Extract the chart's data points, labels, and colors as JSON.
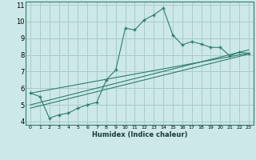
{
  "xlabel": "Humidex (Indice chaleur)",
  "background_color": "#cce8e8",
  "grid_color": "#aacccc",
  "line_color": "#2e7d6e",
  "xlim": [
    -0.5,
    23.5
  ],
  "ylim": [
    3.8,
    11.2
  ],
  "yticks": [
    4,
    5,
    6,
    7,
    8,
    9,
    10,
    11
  ],
  "xticks": [
    0,
    1,
    2,
    3,
    4,
    5,
    6,
    7,
    8,
    9,
    10,
    11,
    12,
    13,
    14,
    15,
    16,
    17,
    18,
    19,
    20,
    21,
    22,
    23
  ],
  "series": [
    {
      "x": [
        0,
        1,
        2,
        3,
        4,
        5,
        6,
        7,
        8,
        9,
        10,
        11,
        12,
        13,
        14,
        15,
        16,
        17,
        18,
        19,
        20,
        21,
        22,
        23
      ],
      "y": [
        5.7,
        5.5,
        4.2,
        4.4,
        4.5,
        4.8,
        5.0,
        5.15,
        6.5,
        7.1,
        9.6,
        9.5,
        10.1,
        10.4,
        10.8,
        9.2,
        8.6,
        8.8,
        8.65,
        8.45,
        8.45,
        7.95,
        8.15,
        8.1
      ]
    },
    {
      "x": [
        0,
        23
      ],
      "y": [
        5.7,
        8.1
      ]
    },
    {
      "x": [
        0,
        23
      ],
      "y": [
        5.0,
        8.3
      ]
    },
    {
      "x": [
        0,
        23
      ],
      "y": [
        4.8,
        8.05
      ]
    }
  ]
}
